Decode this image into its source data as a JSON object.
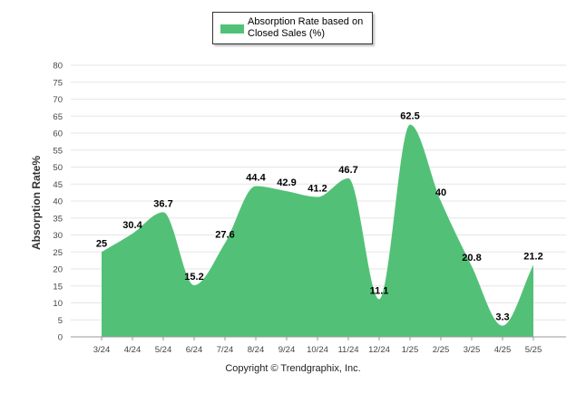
{
  "chart_data": {
    "type": "area",
    "categories": [
      "3/24",
      "4/24",
      "5/24",
      "6/24",
      "7/24",
      "8/24",
      "9/24",
      "10/24",
      "11/24",
      "12/24",
      "1/25",
      "2/25",
      "3/25",
      "4/25",
      "5/25"
    ],
    "series": [
      {
        "name": "Absorption Rate based on Closed Sales (%)",
        "values": [
          25,
          30.4,
          36.7,
          15.2,
          27.6,
          44.4,
          42.9,
          41.2,
          46.7,
          11.1,
          62.5,
          40,
          20.8,
          3.3,
          21.2
        ]
      }
    ],
    "data_labels": [
      "25",
      "30.4",
      "36.7",
      "15.2",
      "27.6",
      "44.4",
      "42.9",
      "41.2",
      "46.7",
      "11.1",
      "62.5",
      "40",
      "20.8",
      "3.3",
      "21.2"
    ],
    "ylabel": "Absorption Rate%",
    "xlabel": "",
    "ylim": [
      0,
      80
    ],
    "yticks": [
      "0",
      "5",
      "10",
      "15",
      "20",
      "25",
      "30",
      "35",
      "40",
      "45",
      "50",
      "55",
      "60",
      "65",
      "70",
      "75",
      "80"
    ],
    "grid": true,
    "legend_position": "top-center",
    "colors": {
      "fill": "#52c177",
      "grid": "#e6e6e6",
      "axis": "#999999",
      "label": "#000000"
    }
  },
  "legend": {
    "label": "Absorption Rate based on Closed Sales (%)"
  },
  "copyright": "Copyright © Trendgraphix, Inc."
}
